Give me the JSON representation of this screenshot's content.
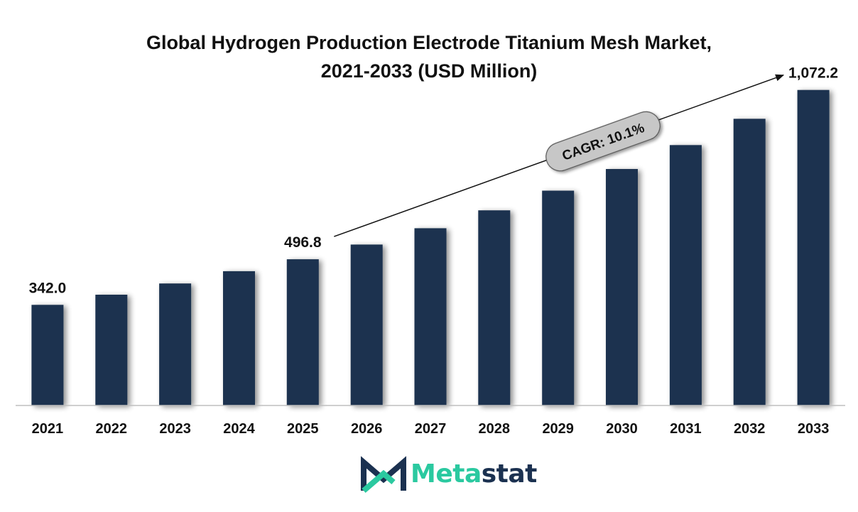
{
  "colors": {
    "bar": "#1b3350",
    "accent": "#2bc9a0",
    "brand_dark": "#1b3150",
    "text": "#111111"
  },
  "chart_data": {
    "type": "bar",
    "title_line1": "Global Hydrogen Production Electrode Titanium Mesh Market,",
    "title_line2": "2021-2033 (USD Million)",
    "xlabel": "",
    "ylabel": "",
    "categories": [
      "2021",
      "2022",
      "2023",
      "2024",
      "2025",
      "2026",
      "2027",
      "2028",
      "2029",
      "2030",
      "2031",
      "2032",
      "2033"
    ],
    "values": [
      342.0,
      376.5,
      414.5,
      456.4,
      496.8,
      546.9,
      602.2,
      663.0,
      729.9,
      803.6,
      884.8,
      974.2,
      1072.2
    ],
    "ylim": [
      0,
      1180
    ],
    "grid": false,
    "data_labels": [
      {
        "category": "2021",
        "text": "342.0"
      },
      {
        "category": "2025",
        "text": "496.8"
      },
      {
        "category": "2033",
        "text": "1,072.2"
      }
    ],
    "annotation": {
      "text": "CAGR: 10.1%",
      "from_category": "2025",
      "to_category": "2033"
    }
  },
  "logo": {
    "part_a": "Meta",
    "part_b": "stat",
    "icon": "metastat-m-logo-icon"
  }
}
